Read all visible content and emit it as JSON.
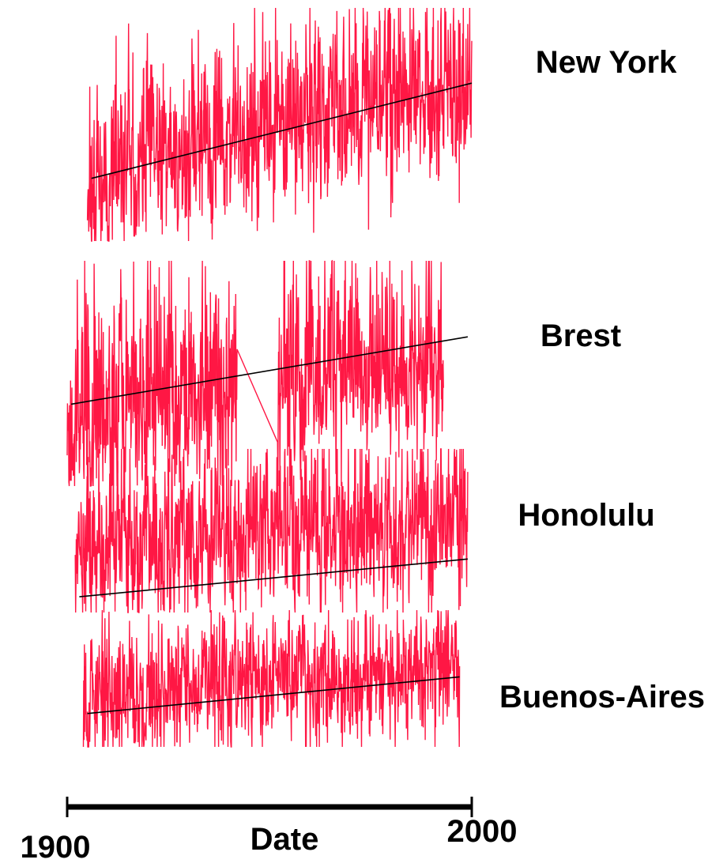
{
  "chart_data": {
    "type": "line",
    "title": "",
    "xlabel": "Date",
    "ylabel": "",
    "xlim": [
      1900,
      2000
    ],
    "x_ticks": [
      "1900",
      "2000"
    ],
    "grid": false,
    "legend": "none",
    "colors": {
      "series": "#ff1744",
      "trend": "#000000",
      "axis": "#000000"
    },
    "series": [
      {
        "name": "New York",
        "start": 1905,
        "end": 2000,
        "seed": 11,
        "trend": [
          0.12,
          0.5
        ],
        "amplitude": 0.2,
        "frac_high": 0.3,
        "frac_low": 0.25
      },
      {
        "name": "Brest",
        "start": 1900,
        "end": 1993,
        "seed": 23,
        "trend": [
          0.65,
          0.88
        ],
        "amplitude": 0.18,
        "frac_high": 0.32,
        "frac_low": 0.22,
        "gap": [
          1942,
          1952
        ]
      },
      {
        "name": "Honolulu",
        "start": 1902,
        "end": 1999,
        "seed": 37,
        "trend": [
          0.6,
          0.84
        ],
        "amplitude": 0.1,
        "frac_high": 0.4,
        "frac_low": 0.4
      },
      {
        "name": "Buenos-Aires",
        "start": 1904,
        "end": 1997,
        "seed": 53,
        "trend": [
          0.9,
          1.12
        ],
        "amplitude": 0.2,
        "frac_high": 0.3,
        "frac_low": 0.3
      }
    ]
  }
}
